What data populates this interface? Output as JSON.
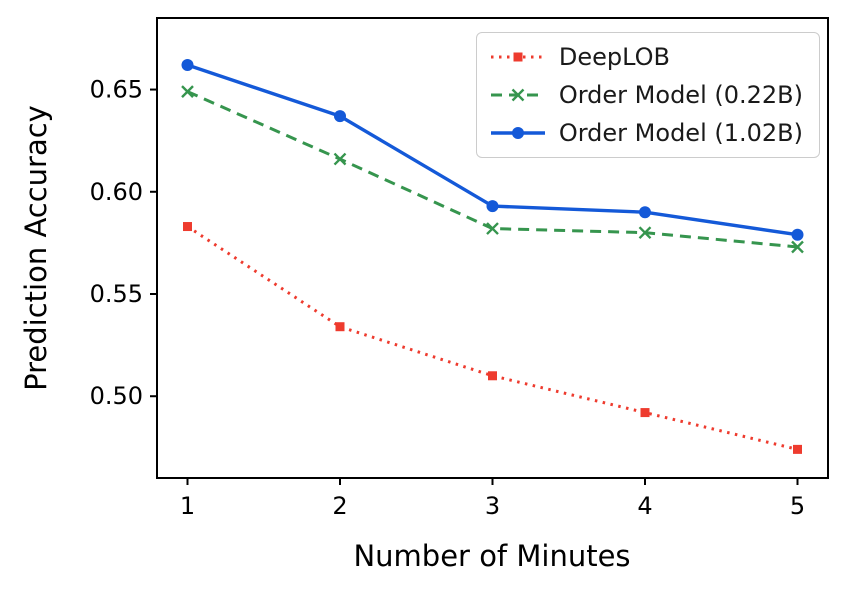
{
  "chart_data": {
    "type": "line",
    "title": "",
    "xlabel": "Number of Minutes",
    "ylabel": "Prediction Accuracy",
    "x": [
      1,
      2,
      3,
      4,
      5
    ],
    "xticks": [
      1,
      2,
      3,
      4,
      5
    ],
    "yticks": [
      0.5,
      0.55,
      0.6,
      0.65
    ],
    "xlim": [
      0.8,
      5.2
    ],
    "ylim": [
      0.46,
      0.685
    ],
    "grid": false,
    "legend_position": "upper-right",
    "series": [
      {
        "name": "DeepLOB",
        "color": "#ee3b2e",
        "linestyle": "dotted",
        "marker": "square",
        "values": [
          0.583,
          0.534,
          0.51,
          0.492,
          0.474
        ]
      },
      {
        "name": "Order Model (0.22B)",
        "color": "#36954e",
        "linestyle": "dashed",
        "marker": "x",
        "values": [
          0.649,
          0.616,
          0.582,
          0.58,
          0.573
        ]
      },
      {
        "name": "Order Model (1.02B)",
        "color": "#1459d8",
        "linestyle": "solid",
        "marker": "circle",
        "values": [
          0.662,
          0.637,
          0.593,
          0.59,
          0.579
        ]
      }
    ]
  }
}
